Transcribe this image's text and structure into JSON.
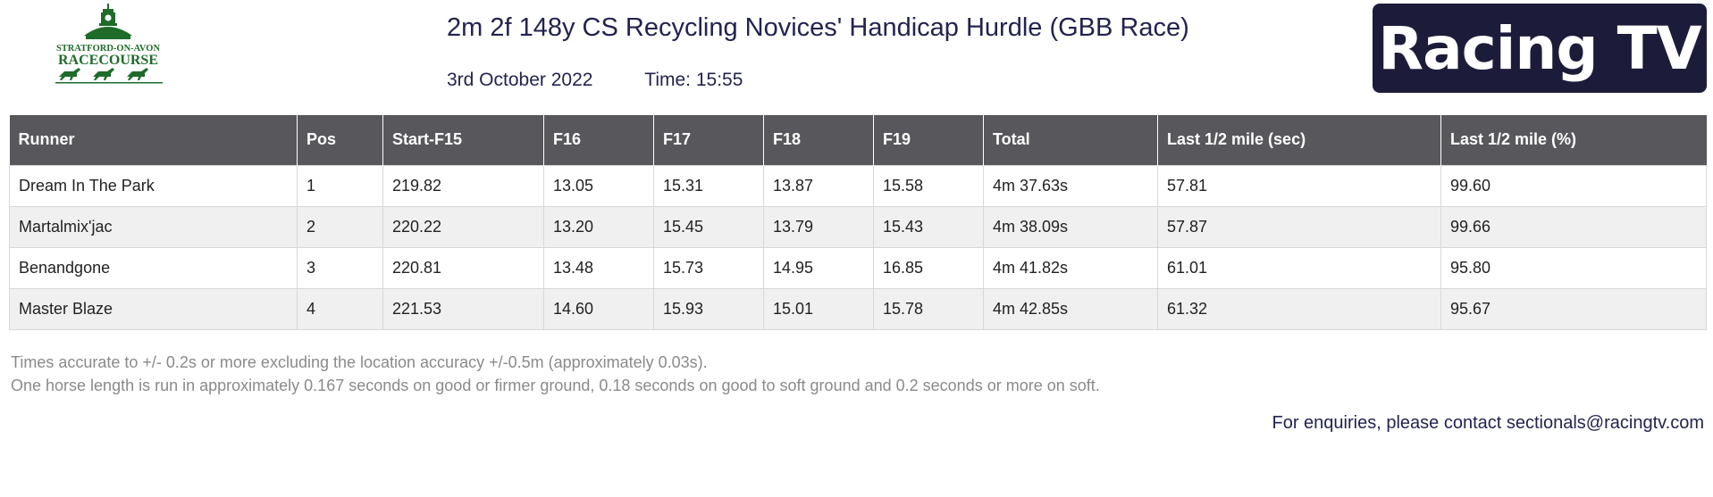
{
  "logo": {
    "line1": "STRATFORD-ON-AVON",
    "line2": "RACECOURSE",
    "color": "#1e6b2a"
  },
  "header": {
    "title": "2m 2f 148y CS Recycling Novices' Handicap Hurdle (GBB Race)",
    "date": "3rd October 2022",
    "time": "Time: 15:55"
  },
  "brand": {
    "name": "Racing TV",
    "bg_color": "#1c1c3a"
  },
  "table": {
    "columns": [
      "Runner",
      "Pos",
      "Start-F15",
      "F16",
      "F17",
      "F18",
      "F19",
      "Total",
      "Last 1/2 mile (sec)",
      "Last 1/2 mile (%)"
    ],
    "rows": [
      [
        "Dream In The Park",
        "1",
        "219.82",
        "13.05",
        "15.31",
        "13.87",
        "15.58",
        "4m 37.63s",
        "57.81",
        "99.60"
      ],
      [
        "Martalmix'jac",
        "2",
        "220.22",
        "13.20",
        "15.45",
        "13.79",
        "15.43",
        "4m 38.09s",
        "57.87",
        "99.66"
      ],
      [
        "Benandgone",
        "3",
        "220.81",
        "13.48",
        "15.73",
        "14.95",
        "16.85",
        "4m 41.82s",
        "61.01",
        "95.80"
      ],
      [
        "Master Blaze",
        "4",
        "221.53",
        "14.60",
        "15.93",
        "15.01",
        "15.78",
        "4m 42.85s",
        "61.32",
        "95.67"
      ]
    ]
  },
  "notes": {
    "line1": "Times accurate to +/- 0.2s or more excluding the location accuracy +/-0.5m (approximately 0.03s).",
    "line2": "One horse length is run in approximately 0.167 seconds on good or firmer ground, 0.18 seconds on good to soft ground and 0.2 seconds or more on soft."
  },
  "contact": "For enquiries, please contact sectionals@racingtv.com"
}
